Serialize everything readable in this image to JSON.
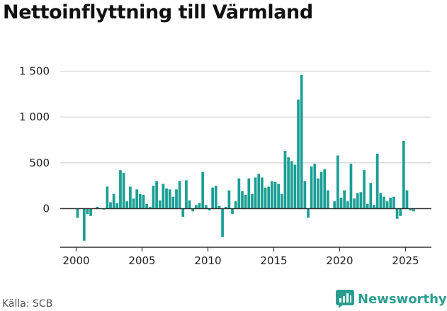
{
  "colors": {
    "bar": "#1b9f95",
    "brand": "#2a9d8f",
    "grid": "#d9d9d9",
    "axis": "#333333"
  },
  "footer": {
    "source": "Källa: SCB",
    "brand_name": "Newsworthy",
    "brand_icon": "newsworthy-logo-icon"
  },
  "chart_data": {
    "type": "bar",
    "title": "Nettoinflyttning till Värmland",
    "xlabel": "",
    "ylabel": "",
    "ylim": [
      -400,
      1600
    ],
    "xlim": [
      1999.3,
      2027.2
    ],
    "grid": true,
    "y_ticks": [
      {
        "value": 0,
        "label": "0"
      },
      {
        "value": 500,
        "label": "500"
      },
      {
        "value": 1000,
        "label": "1 000"
      },
      {
        "value": 1500,
        "label": "1 500"
      }
    ],
    "x_ticks": [
      {
        "value": 2000,
        "label": "2000"
      },
      {
        "value": 2005,
        "label": "2005"
      },
      {
        "value": 2010,
        "label": "2010"
      },
      {
        "value": 2015,
        "label": "2015"
      },
      {
        "value": 2020,
        "label": "2020"
      },
      {
        "value": 2025,
        "label": "2025"
      }
    ],
    "bar_period": 0.25,
    "x": [
      "2000 Q1",
      "2000 Q2",
      "2000 Q3",
      "2000 Q4",
      "2001 Q1",
      "2001 Q2",
      "2001 Q3",
      "2001 Q4",
      "2002 Q1",
      "2002 Q2",
      "2002 Q3",
      "2002 Q4",
      "2003 Q1",
      "2003 Q2",
      "2003 Q3",
      "2003 Q4",
      "2004 Q1",
      "2004 Q2",
      "2004 Q3",
      "2004 Q4",
      "2005 Q1",
      "2005 Q2",
      "2005 Q3",
      "2005 Q4",
      "2006 Q1",
      "2006 Q2",
      "2006 Q3",
      "2006 Q4",
      "2007 Q1",
      "2007 Q2",
      "2007 Q3",
      "2007 Q4",
      "2008 Q1",
      "2008 Q2",
      "2008 Q3",
      "2008 Q4",
      "2009 Q1",
      "2009 Q2",
      "2009 Q3",
      "2009 Q4",
      "2010 Q1",
      "2010 Q2",
      "2010 Q3",
      "2010 Q4",
      "2011 Q1",
      "2011 Q2",
      "2011 Q3",
      "2011 Q4",
      "2012 Q1",
      "2012 Q2",
      "2012 Q3",
      "2012 Q4",
      "2013 Q1",
      "2013 Q2",
      "2013 Q3",
      "2013 Q4",
      "2014 Q1",
      "2014 Q2",
      "2014 Q3",
      "2014 Q4",
      "2015 Q1",
      "2015 Q2",
      "2015 Q3",
      "2015 Q4",
      "2016 Q1",
      "2016 Q2",
      "2016 Q3",
      "2016 Q4",
      "2017 Q1",
      "2017 Q2",
      "2017 Q3",
      "2017 Q4",
      "2018 Q1",
      "2018 Q2",
      "2018 Q3",
      "2018 Q4",
      "2019 Q1",
      "2019 Q2",
      "2019 Q3",
      "2019 Q4",
      "2020 Q1",
      "2020 Q2",
      "2020 Q3",
      "2020 Q4",
      "2021 Q1",
      "2021 Q2",
      "2021 Q3",
      "2021 Q4",
      "2022 Q1",
      "2022 Q2",
      "2022 Q3",
      "2022 Q4",
      "2023 Q1",
      "2023 Q2",
      "2023 Q3",
      "2023 Q4",
      "2024 Q1",
      "2024 Q2",
      "2024 Q3",
      "2024 Q4",
      "2025 Q1",
      "2025 Q2",
      "2025 Q3",
      "2025 Q4"
    ],
    "series": [
      {
        "values": [
          -100,
          0,
          -350,
          -60,
          -80,
          0,
          20,
          0,
          -10,
          240,
          70,
          160,
          60,
          420,
          390,
          80,
          240,
          110,
          210,
          160,
          150,
          50,
          20,
          250,
          300,
          90,
          270,
          220,
          210,
          130,
          210,
          300,
          -90,
          310,
          90,
          -30,
          40,
          60,
          400,
          40,
          -20,
          230,
          250,
          30,
          -310,
          20,
          200,
          -60,
          80,
          330,
          190,
          150,
          330,
          160,
          340,
          380,
          340,
          230,
          240,
          300,
          290,
          270,
          160,
          630,
          560,
          520,
          480,
          1190,
          1460,
          300,
          -100,
          460,
          490,
          330,
          400,
          430,
          200,
          0,
          80,
          580,
          120,
          200,
          80,
          490,
          110,
          170,
          180,
          420,
          50,
          280,
          40,
          600,
          170,
          130,
          80,
          120,
          130,
          -110,
          -80,
          740,
          200,
          -20,
          -30,
          0
        ]
      }
    ]
  }
}
